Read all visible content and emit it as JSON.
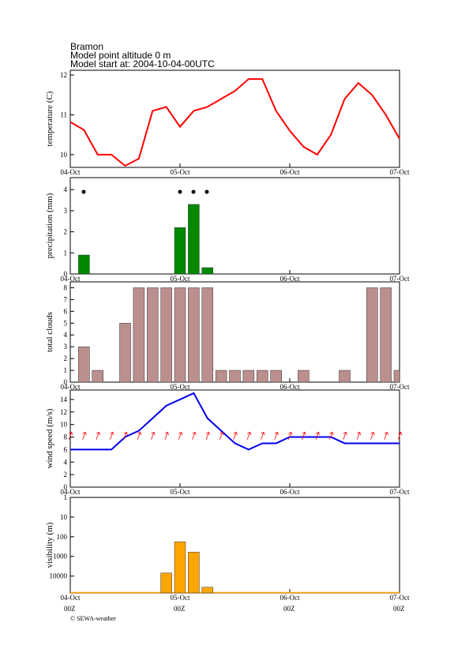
{
  "header": {
    "title": "Bramon",
    "altitude": "Model point altitude  0 m",
    "start": "Model start at: 2004-10-04-00UTC"
  },
  "footer": "© SEWA-weather",
  "chart_data": [
    {
      "type": "line",
      "ylabel": "temperature (C)",
      "color": "#ff0000",
      "x": [
        0,
        3,
        6,
        9,
        12,
        15,
        18,
        21,
        24,
        27,
        30,
        33,
        36,
        39,
        42,
        45,
        48,
        51,
        54,
        57,
        60,
        63,
        66,
        69,
        72
      ],
      "values": [
        10.82,
        10.62,
        10.0,
        10.0,
        9.72,
        9.9,
        11.1,
        11.2,
        10.7,
        11.1,
        11.2,
        11.4,
        11.6,
        11.9,
        11.9,
        11.1,
        10.6,
        10.2,
        10.0,
        10.5,
        11.4,
        11.8,
        11.5,
        11.0,
        10.4
      ],
      "xlim": [
        0,
        72
      ],
      "xticks": [
        {
          "value": 0,
          "label": "04-Oct"
        },
        {
          "value": 24,
          "label": "05-Oct"
        },
        {
          "value": 48,
          "label": "06-Oct"
        },
        {
          "value": 72,
          "label": "07-Oct"
        }
      ],
      "ylim": [
        9.68,
        12.12
      ],
      "yticks": [
        10,
        11,
        12
      ]
    },
    {
      "type": "bar",
      "ylabel": "precipitation (mm)",
      "color": "#008800",
      "x": [
        3,
        24,
        27,
        30
      ],
      "values": [
        0.9,
        2.2,
        3.3,
        0.3
      ],
      "xlim": [
        0,
        72
      ],
      "xticks": [
        {
          "value": 0,
          "label": "04-Oct"
        },
        {
          "value": 24,
          "label": "05-Oct"
        },
        {
          "value": 48,
          "label": "06-Oct"
        },
        {
          "value": 72,
          "label": "07-Oct"
        }
      ],
      "ylim": [
        0,
        4.57
      ],
      "yticks": [
        0,
        1,
        2,
        3,
        4
      ]
    },
    {
      "type": "bar",
      "ylabel": "total clouds",
      "color": "#bc8f8f",
      "x": [
        3,
        6,
        12,
        15,
        18,
        21,
        24,
        27,
        30,
        33,
        36,
        39,
        42,
        45,
        51,
        60,
        66,
        69,
        72
      ],
      "values": [
        3,
        1,
        5,
        8,
        8,
        8,
        8,
        8,
        8,
        1,
        1,
        1,
        1,
        1,
        1,
        1,
        8,
        8,
        1
      ],
      "xlim": [
        0,
        72
      ],
      "xticks": [
        {
          "value": 0,
          "label": "04-Oct"
        },
        {
          "value": 24,
          "label": "05-Oct"
        },
        {
          "value": 48,
          "label": "06-Oct"
        },
        {
          "value": 72,
          "label": "07-Oct"
        }
      ],
      "ylim": [
        0,
        8.5
      ],
      "yticks": [
        0,
        1,
        2,
        3,
        4,
        5,
        6,
        7,
        8
      ]
    },
    {
      "type": "line",
      "ylabel": "wind speed (m/s)",
      "color": "#0000ee",
      "x": [
        0,
        3,
        6,
        9,
        12,
        15,
        18,
        21,
        24,
        27,
        30,
        33,
        36,
        39,
        42,
        45,
        48,
        51,
        54,
        57,
        60,
        63,
        66,
        69,
        72
      ],
      "values": [
        6,
        6,
        6,
        6,
        8,
        9,
        11,
        13,
        14,
        15,
        11,
        9,
        7,
        6,
        7,
        7,
        8,
        8,
        8,
        8,
        7,
        7,
        7,
        7,
        7
      ],
      "xlim": [
        0,
        72
      ],
      "xticks": [
        {
          "value": 0,
          "label": "04-Oct"
        },
        {
          "value": 24,
          "label": "05-Oct"
        },
        {
          "value": 48,
          "label": "06-Oct"
        },
        {
          "value": 72,
          "label": "07-Oct"
        }
      ],
      "ylim": [
        0,
        15.5
      ],
      "yticks": [
        0,
        2,
        4,
        6,
        8,
        10,
        12,
        14
      ]
    },
    {
      "type": "bar",
      "ylabel": "visibility (m)",
      "color": "#ffa500",
      "log": true,
      "inverted": true,
      "x": [
        21,
        24,
        27,
        30
      ],
      "values": [
        7000,
        180,
        600,
        37000
      ],
      "xlim": [
        0,
        72
      ],
      "xticks": [
        {
          "value": 0,
          "label": "04-Oct"
        },
        {
          "value": 24,
          "label": "05-Oct"
        },
        {
          "value": 48,
          "label": "06-Oct"
        },
        {
          "value": 72,
          "label": "07-Oct"
        }
      ],
      "xsublabels": [
        "00Z",
        "00Z",
        "00Z",
        "00Z"
      ],
      "ylim": [
        1,
        72000
      ],
      "yticks": [
        1,
        10,
        100,
        1000,
        10000
      ]
    }
  ]
}
